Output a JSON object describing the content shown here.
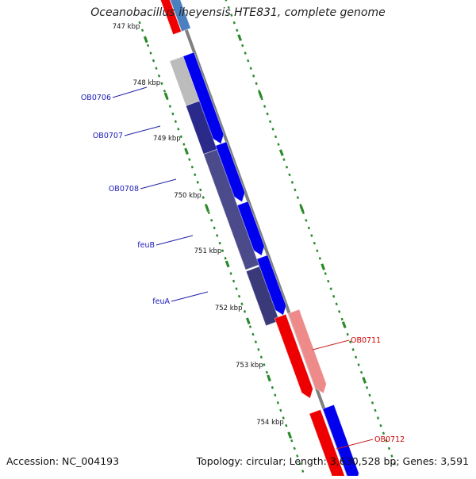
{
  "title": "Oceanobacillus iheyensis HTE831, complete genome",
  "footer": {
    "accession": "Accession: NC_004193",
    "topology": "Topology: circular; Length: 3,630,528 bp; Genes: 3,591"
  },
  "scale_labels": [
    "747 kbp",
    "748 kbp",
    "749 kbp",
    "750 kbp",
    "751 kbp",
    "752 kbp",
    "753 kbp",
    "754 kbp"
  ],
  "gene_labels": {
    "left": [
      "OB0706",
      "OB0707",
      "OB0708",
      "feuB",
      "feuA"
    ],
    "right": [
      "OB0711",
      "OB0712"
    ]
  },
  "colors": {
    "forward_gene": "#0000ee",
    "reverse_gene": "#ee0000",
    "left_label": "#1a1ab8",
    "right_label": "#cc0000",
    "ticks": "#2a8a2a",
    "backbone": "#808080"
  }
}
